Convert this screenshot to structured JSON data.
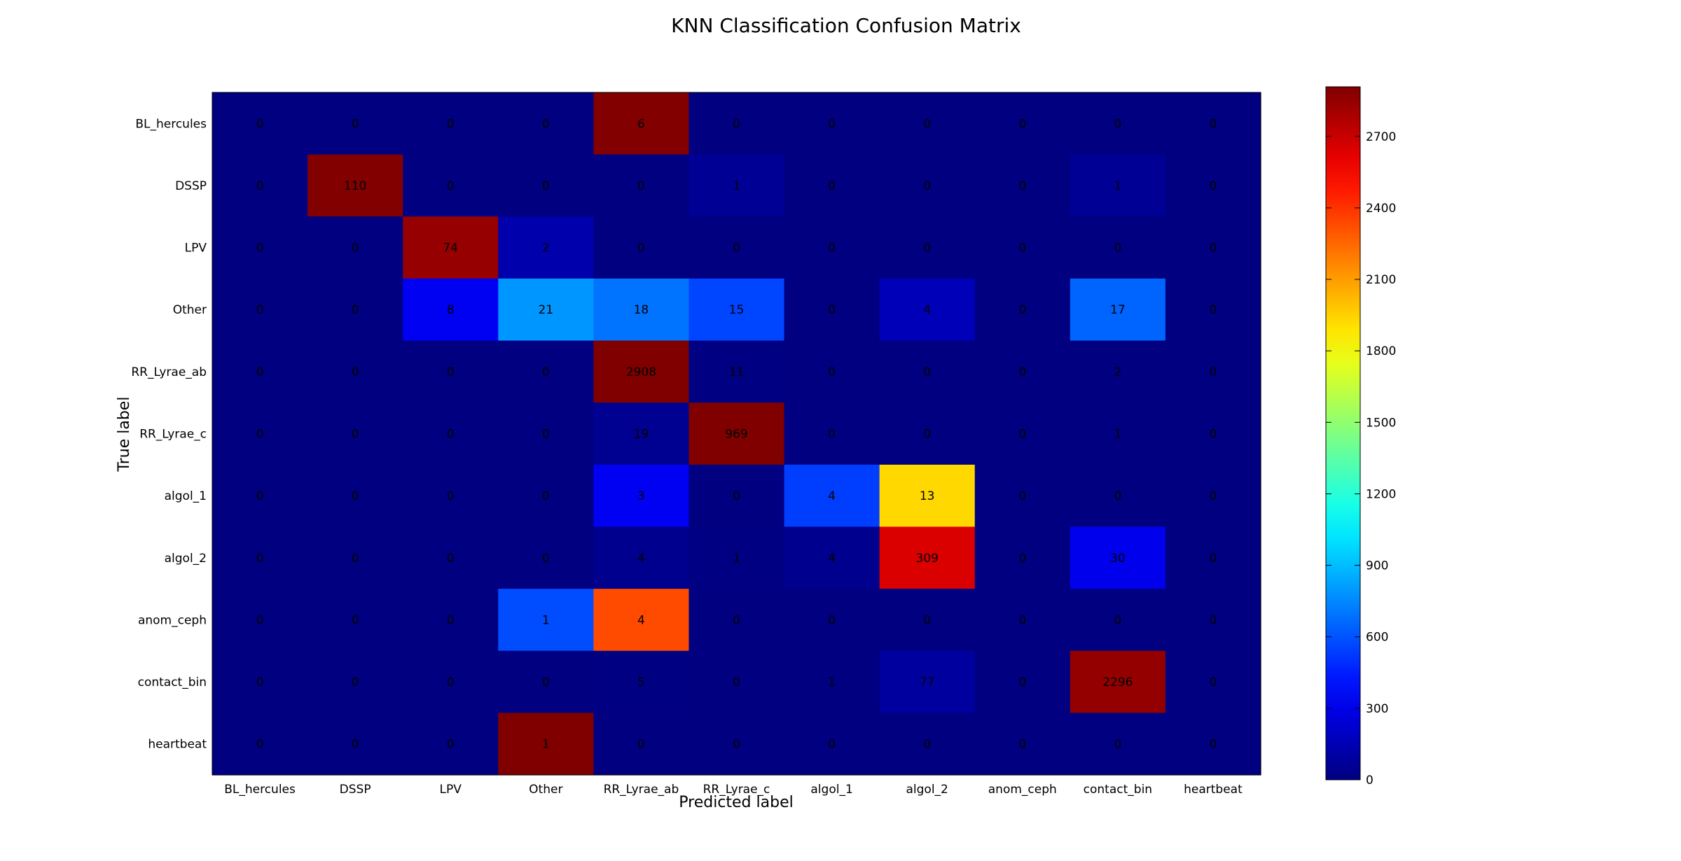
{
  "chart_data": {
    "type": "heatmap",
    "title": "KNN Classification Confusion Matrix",
    "xlabel": "Predicted label",
    "ylabel": "True label",
    "x_categories": [
      "BL_hercules",
      "DSSP",
      "LPV",
      "Other",
      "RR_Lyrae_ab",
      "RR_Lyrae_c",
      "algol_1",
      "algol_2",
      "anom_ceph",
      "contact_bin",
      "heartbeat"
    ],
    "y_categories": [
      "BL_hercules",
      "DSSP",
      "LPV",
      "Other",
      "RR_Lyrae_ab",
      "RR_Lyrae_c",
      "algol_1",
      "algol_2",
      "anom_ceph",
      "contact_bin",
      "heartbeat"
    ],
    "labels": [
      [
        "0",
        "0",
        "0",
        "0",
        "6",
        "0",
        "0",
        "0",
        "0",
        "0",
        "0"
      ],
      [
        "0",
        "110",
        "0",
        "0",
        "0",
        "1",
        "0",
        "0",
        "0",
        "1",
        "0"
      ],
      [
        "0",
        "0",
        "74",
        "2",
        "0",
        "0",
        "0",
        "0",
        "0",
        "0",
        "0"
      ],
      [
        "0",
        "0",
        "8",
        "21",
        "18",
        "15",
        "0",
        "4",
        "0",
        "17",
        "0"
      ],
      [
        "0",
        "0",
        "0",
        "0",
        "2908",
        "11",
        "0",
        "0",
        "0",
        "2",
        "0"
      ],
      [
        "0",
        "0",
        "0",
        "0",
        "19",
        "969",
        "0",
        "0",
        "0",
        "1",
        "0"
      ],
      [
        "0",
        "0",
        "0",
        "0",
        "3",
        "0",
        "4",
        "13",
        "0",
        "0",
        "0"
      ],
      [
        "0",
        "0",
        "0",
        "0",
        "4",
        "1",
        "4",
        "309",
        "0",
        "30",
        "0"
      ],
      [
        "0",
        "0",
        "0",
        "1",
        "4",
        "0",
        "0",
        "0",
        "0",
        "0",
        "0"
      ],
      [
        "0",
        "0",
        "0",
        "0",
        "5",
        "0",
        "1",
        "77",
        "0",
        "2296",
        "0"
      ],
      [
        "0",
        "0",
        "0",
        "1",
        "0",
        "0",
        "0",
        "0",
        "0",
        "0",
        "0"
      ]
    ],
    "color_values": [
      [
        0,
        0,
        0,
        0,
        2900,
        0,
        0,
        0,
        0,
        0,
        0
      ],
      [
        0,
        2900,
        0,
        0,
        0,
        60,
        0,
        0,
        0,
        60,
        0
      ],
      [
        0,
        0,
        2840,
        130,
        0,
        0,
        0,
        0,
        0,
        0,
        0
      ],
      [
        0,
        0,
        330,
        790,
        690,
        560,
        0,
        160,
        0,
        650,
        0
      ],
      [
        0,
        0,
        0,
        0,
        2908,
        11,
        0,
        0,
        0,
        2,
        0
      ],
      [
        0,
        0,
        0,
        0,
        50,
        2908,
        0,
        0,
        0,
        1,
        0
      ],
      [
        0,
        0,
        0,
        0,
        330,
        0,
        540,
        1930,
        0,
        0,
        0
      ],
      [
        0,
        0,
        0,
        0,
        40,
        10,
        40,
        2650,
        0,
        310,
        0
      ],
      [
        0,
        0,
        0,
        580,
        2330,
        0,
        0,
        0,
        0,
        0,
        0
      ],
      [
        0,
        0,
        0,
        0,
        6,
        0,
        1,
        90,
        0,
        2850,
        0
      ],
      [
        0,
        0,
        0,
        2908,
        0,
        0,
        0,
        0,
        0,
        0,
        0
      ]
    ],
    "colormap": "jet",
    "colorbar": {
      "min": 0,
      "max": 2908,
      "ticks": [
        0,
        300,
        600,
        900,
        1200,
        1500,
        1800,
        2100,
        2400,
        2700
      ]
    },
    "grid": false
  }
}
